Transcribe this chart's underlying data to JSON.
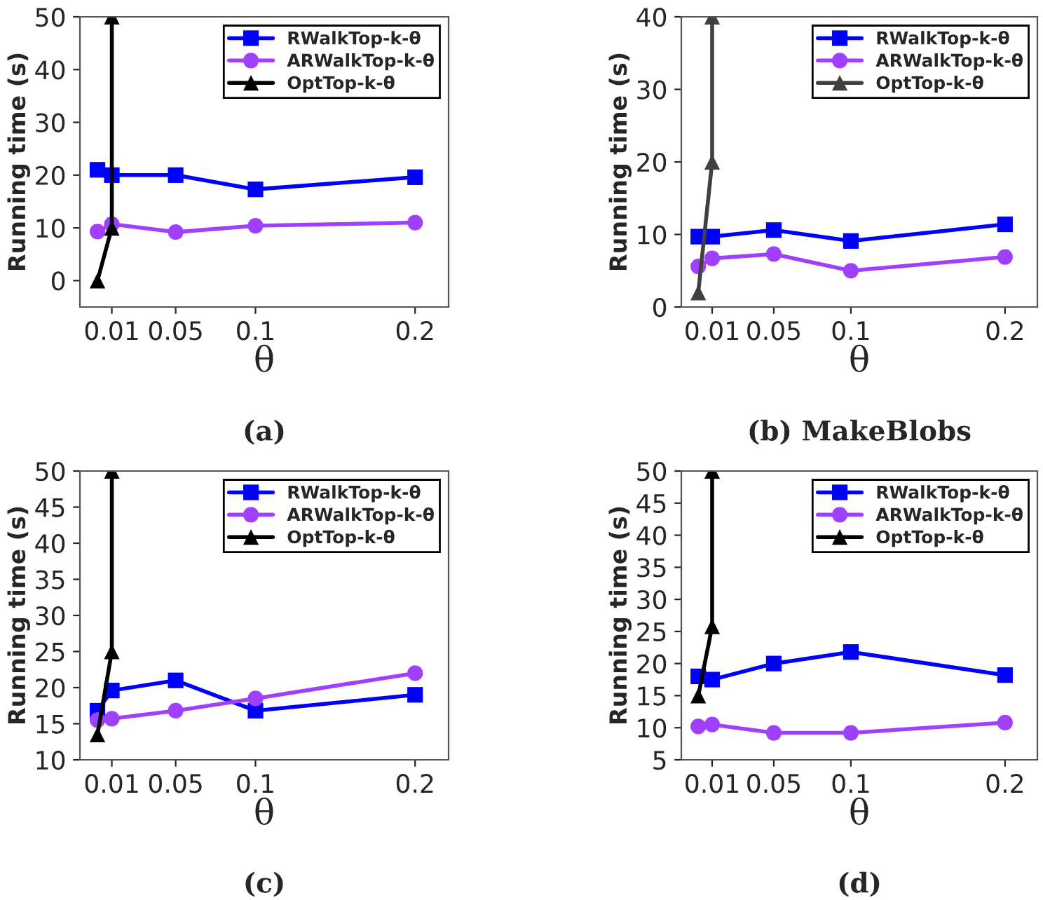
{
  "chart_data": [
    {
      "type": "line",
      "title": "(a)",
      "xlabel": "θ",
      "ylabel": "Running time (s)",
      "xlim": [
        -0.01,
        0.221
      ],
      "xticks": [
        0.01,
        0.05,
        0.1,
        0.2
      ],
      "ylim": [
        -5,
        50
      ],
      "yticks": [
        0,
        10,
        20,
        30,
        40,
        50
      ],
      "legend": "top right",
      "grid": false,
      "series": [
        {
          "name": "RWalkTop-k-θ",
          "color": "#0000ff",
          "marker": "square",
          "x": [
            0.001,
            0.01,
            0.05,
            0.1,
            0.2
          ],
          "values": [
            21,
            20,
            20,
            17.3,
            19.6
          ]
        },
        {
          "name": "ARWalkTop-k-θ",
          "color": "#a040ff",
          "marker": "circle",
          "x": [
            0.001,
            0.01,
            0.05,
            0.1,
            0.2
          ],
          "values": [
            9.3,
            10.7,
            9.2,
            10.4,
            11
          ]
        },
        {
          "name": "OptTop-k-θ",
          "color": "#000000",
          "marker": "triangle",
          "x": [
            0.001,
            0.01,
            0.01
          ],
          "values": [
            0,
            10,
            50
          ]
        }
      ]
    },
    {
      "type": "line",
      "title": "(b) MakeBlobs",
      "xlabel": "θ",
      "ylabel": "Running time (s)",
      "xlim": [
        -0.01,
        0.221
      ],
      "xticks": [
        0.01,
        0.05,
        0.1,
        0.2
      ],
      "ylim": [
        0,
        40
      ],
      "yticks": [
        0,
        10,
        20,
        30,
        40
      ],
      "legend": "top right",
      "grid": false,
      "series": [
        {
          "name": "RWalkTop-k-θ",
          "color": "#0000ff",
          "marker": "square",
          "x": [
            0.001,
            0.01,
            0.05,
            0.1,
            0.2
          ],
          "values": [
            9.7,
            9.7,
            10.6,
            9.1,
            11.4
          ]
        },
        {
          "name": "ARWalkTop-k-θ",
          "color": "#a040ff",
          "marker": "circle",
          "x": [
            0.001,
            0.01,
            0.05,
            0.1,
            0.2
          ],
          "values": [
            5.6,
            6.7,
            7.3,
            5,
            6.9
          ]
        },
        {
          "name": "OptTop-k-θ",
          "color": "#404040",
          "marker": "triangle",
          "x": [
            0.001,
            0.01,
            0.01
          ],
          "values": [
            2,
            20,
            40
          ]
        }
      ]
    },
    {
      "type": "line",
      "title": "(c)",
      "xlabel": "θ",
      "ylabel": "Running time (s)",
      "xlim": [
        -0.01,
        0.221
      ],
      "xticks": [
        0.01,
        0.05,
        0.1,
        0.2
      ],
      "ylim": [
        10,
        50
      ],
      "yticks": [
        10,
        15,
        20,
        25,
        30,
        35,
        40,
        45,
        50
      ],
      "legend": "top right",
      "grid": false,
      "series": [
        {
          "name": "RWalkTop-k-θ",
          "color": "#0000ff",
          "marker": "square",
          "x": [
            0.001,
            0.01,
            0.05,
            0.1,
            0.2
          ],
          "values": [
            16.8,
            19.6,
            21,
            16.8,
            19
          ]
        },
        {
          "name": "ARWalkTop-k-θ",
          "color": "#a040ff",
          "marker": "circle",
          "x": [
            0.001,
            0.01,
            0.05,
            0.1,
            0.2
          ],
          "values": [
            15.5,
            15.7,
            16.8,
            18.5,
            22
          ]
        },
        {
          "name": "OptTop-k-θ",
          "color": "#000000",
          "marker": "triangle",
          "x": [
            0.001,
            0.01,
            0.01
          ],
          "values": [
            13.5,
            25,
            50
          ]
        }
      ]
    },
    {
      "type": "line",
      "title": "(d)",
      "xlabel": "θ",
      "ylabel": "Running time (s)",
      "xlim": [
        -0.01,
        0.221
      ],
      "xticks": [
        0.01,
        0.05,
        0.1,
        0.2
      ],
      "ylim": [
        5,
        50
      ],
      "yticks": [
        5,
        10,
        15,
        20,
        25,
        30,
        35,
        40,
        45,
        50
      ],
      "legend": "top right",
      "grid": false,
      "series": [
        {
          "name": "RWalkTop-k-θ",
          "color": "#0000ff",
          "marker": "square",
          "x": [
            0.001,
            0.01,
            0.05,
            0.1,
            0.2
          ],
          "values": [
            18,
            17.5,
            20,
            21.8,
            18.2
          ]
        },
        {
          "name": "ARWalkTop-k-θ",
          "color": "#a040ff",
          "marker": "circle",
          "x": [
            0.001,
            0.01,
            0.05,
            0.1,
            0.2
          ],
          "values": [
            10.2,
            10.5,
            9.2,
            9.2,
            10.8
          ]
        },
        {
          "name": "OptTop-k-θ",
          "color": "#000000",
          "marker": "triangle",
          "x": [
            0.001,
            0.01,
            0.01
          ],
          "values": [
            15,
            25.8,
            50
          ]
        }
      ]
    }
  ]
}
